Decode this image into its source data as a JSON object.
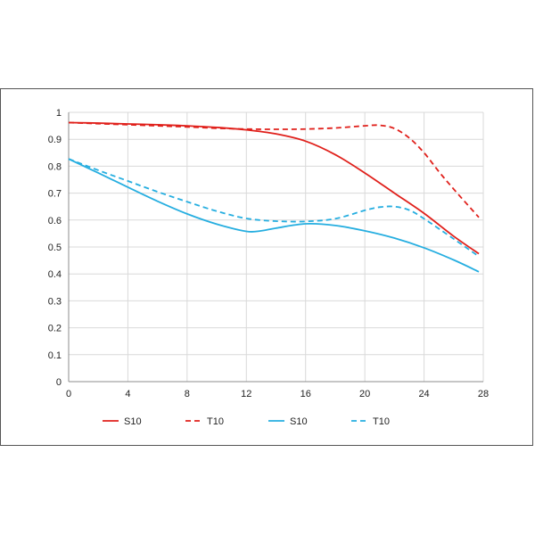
{
  "chart_data": {
    "type": "line",
    "title": "",
    "xlabel": "",
    "ylabel": "",
    "xlim": [
      0,
      28
    ],
    "ylim": [
      0,
      1
    ],
    "xticks": [
      0,
      4,
      8,
      12,
      16,
      20,
      24,
      28
    ],
    "yticks": [
      0,
      0.1,
      0.2,
      0.3,
      0.4,
      0.5,
      0.6,
      0.7,
      0.8,
      0.9,
      1
    ],
    "grid": "horizontal and vertical",
    "legend": "bottom",
    "series": [
      {
        "name": "S10",
        "color": "#e0201b",
        "style": "solid",
        "x": [
          0,
          2,
          4,
          6,
          8,
          10,
          12,
          14,
          16,
          18,
          20,
          22,
          24,
          26,
          27.7
        ],
        "y": [
          0.962,
          0.96,
          0.957,
          0.954,
          0.95,
          0.944,
          0.935,
          0.92,
          0.893,
          0.843,
          0.775,
          0.7,
          0.625,
          0.54,
          0.475
        ]
      },
      {
        "name": "T10",
        "color": "#e0201b",
        "style": "dashed",
        "x": [
          0,
          2,
          4,
          6,
          8,
          10,
          12,
          14,
          16,
          18,
          20,
          21,
          22,
          23,
          24,
          25,
          26,
          27.7
        ],
        "y": [
          0.962,
          0.958,
          0.954,
          0.95,
          0.946,
          0.941,
          0.938,
          0.937,
          0.938,
          0.942,
          0.95,
          0.952,
          0.94,
          0.905,
          0.85,
          0.78,
          0.715,
          0.61
        ]
      },
      {
        "name": "S10",
        "color": "#26aee0",
        "style": "solid",
        "x": [
          0,
          2,
          4,
          6,
          8,
          10,
          12,
          13,
          14,
          16,
          18,
          20,
          22,
          24,
          26,
          27.7
        ],
        "y": [
          0.827,
          0.775,
          0.722,
          0.67,
          0.623,
          0.585,
          0.558,
          0.56,
          0.57,
          0.586,
          0.58,
          0.56,
          0.533,
          0.497,
          0.452,
          0.408
        ]
      },
      {
        "name": "T10",
        "color": "#26aee0",
        "style": "dashed",
        "x": [
          0,
          2,
          4,
          6,
          8,
          10,
          12,
          14,
          16,
          18,
          20,
          21,
          22,
          23,
          24,
          26,
          27.7
        ],
        "y": [
          0.827,
          0.785,
          0.745,
          0.705,
          0.668,
          0.633,
          0.606,
          0.596,
          0.595,
          0.605,
          0.636,
          0.648,
          0.65,
          0.637,
          0.605,
          0.53,
          0.465
        ]
      }
    ]
  }
}
